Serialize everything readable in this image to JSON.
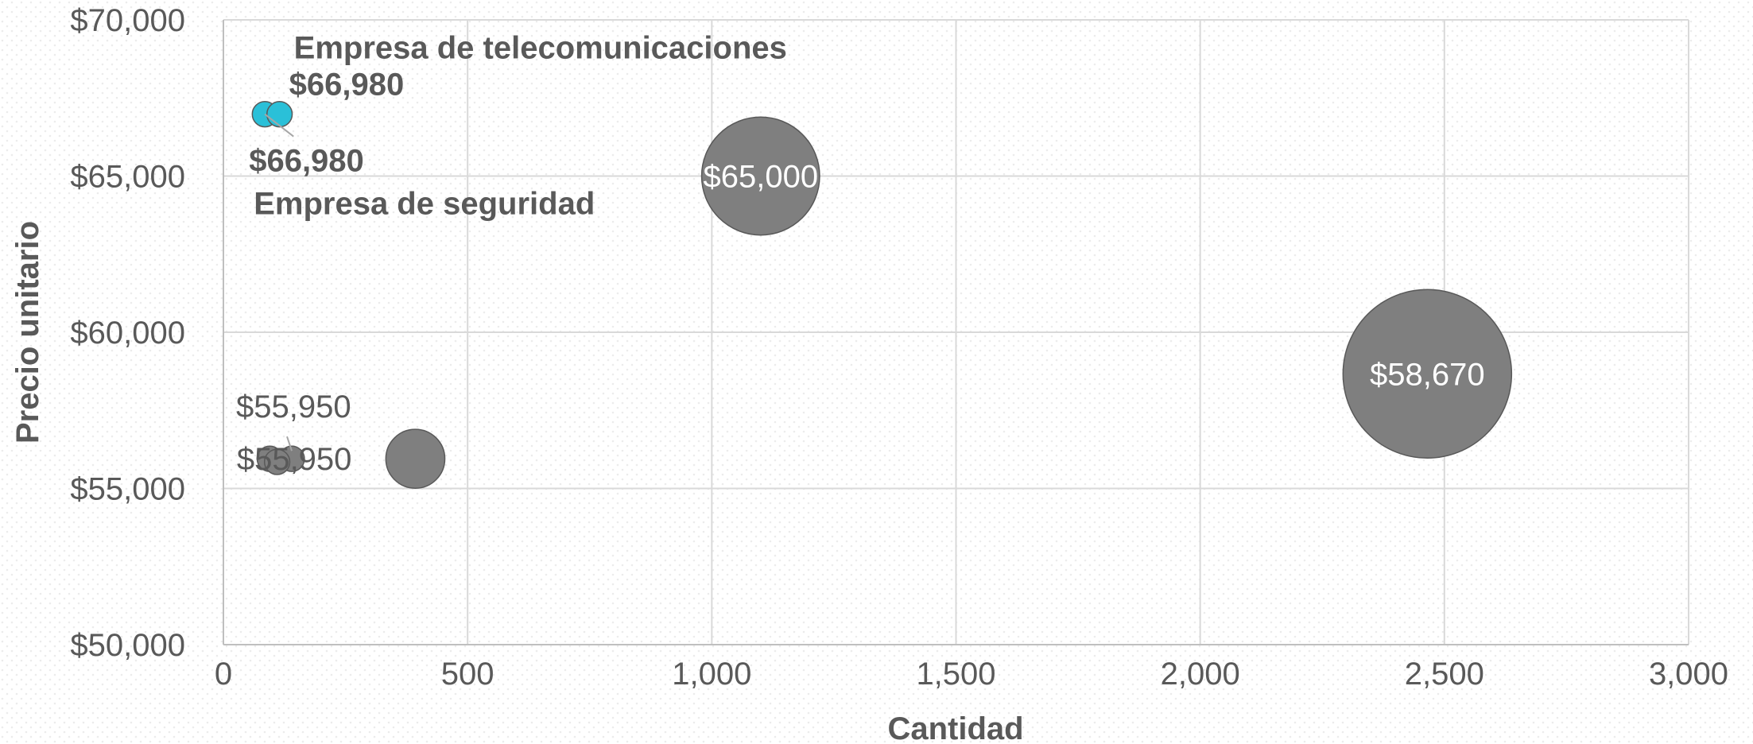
{
  "chart_data": {
    "type": "bubble",
    "xlabel": "Cantidad",
    "ylabel": "Precio unitario",
    "xlim": [
      0,
      3000
    ],
    "ylim": [
      50000,
      70000
    ],
    "x_ticks": [
      "0",
      "500",
      "1,000",
      "1,500",
      "2,000",
      "2,500",
      "3,000"
    ],
    "y_ticks": [
      "$50,000",
      "$55,000",
      "$60,000",
      "$65,000",
      "$70,000"
    ],
    "grid": true,
    "colors": {
      "default": "#7f7f7f",
      "highlight": "#2ac0d8",
      "text": "#595959"
    },
    "points": [
      {
        "x": 85,
        "y": 66980,
        "size": 30,
        "color": "#2ac0d8",
        "label": "$66,980",
        "bold": true,
        "annotation": "Empresa de seguridad"
      },
      {
        "x": 115,
        "y": 66980,
        "size": 30,
        "color": "#2ac0d8",
        "label": "$66,980",
        "bold": true,
        "annotation": "Empresa de telecomunicaciones"
      },
      {
        "x": 95,
        "y": 55950,
        "size": 30,
        "color": "#7f7f7f",
        "label": ""
      },
      {
        "x": 140,
        "y": 55950,
        "size": 30,
        "color": "#7f7f7f",
        "label": "$55,950"
      },
      {
        "x": 110,
        "y": 55850,
        "size": 30,
        "color": "#7f7f7f",
        "label": ""
      },
      {
        "x": 393,
        "y": 55950,
        "size": 70,
        "color": "#7f7f7f",
        "label": "$55,950"
      },
      {
        "x": 1100,
        "y": 65000,
        "size": 140,
        "color": "#7f7f7f",
        "label": "$65,000"
      },
      {
        "x": 2465,
        "y": 58670,
        "size": 200,
        "color": "#7f7f7f",
        "label": "$58,670"
      }
    ]
  }
}
